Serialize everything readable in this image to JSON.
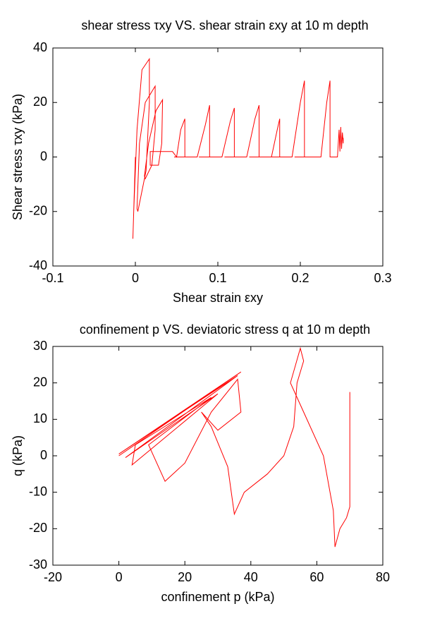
{
  "chart_data": [
    {
      "type": "line",
      "title": "shear stress τxy VS. shear strain εxy at 10 m depth",
      "xlabel": "Shear strain εxy",
      "ylabel": "Shear stress τxy (kPa)",
      "xlim": [
        -0.1,
        0.3
      ],
      "ylim": [
        -40,
        40
      ],
      "xticks": [
        -0.1,
        0,
        0.1,
        0.2,
        0.3
      ],
      "yticks": [
        -40,
        -20,
        0,
        20,
        40
      ],
      "series": [
        {
          "color": "#ff0000",
          "x": [
            0,
            -0.003,
            -0.002,
            0.002,
            0.008,
            0.017,
            0.017,
            0.013,
            0.003,
            0.002,
            0.005,
            0.012,
            0.024,
            0.024,
            0.02,
            0.012,
            0.011,
            0.016,
            0.025,
            0.033,
            0.032,
            0.028,
            0.018,
            0.018,
            0.045,
            0.05,
            0.055,
            0.06,
            0.06,
            0.047,
            0.075,
            0.085,
            0.09,
            0.09,
            0.077,
            0.105,
            0.115,
            0.12,
            0.12,
            0.108,
            0.135,
            0.145,
            0.15,
            0.15,
            0.138,
            0.165,
            0.172,
            0.175,
            0.175,
            0.163,
            0.19,
            0.2,
            0.205,
            0.205,
            0.193,
            0.225,
            0.232,
            0.236,
            0.236,
            0.245,
            0.247,
            0.248,
            0.249,
            0.25,
            0.251,
            0.252,
            0.252
          ],
          "values": [
            0,
            -30,
            -20,
            10,
            32,
            36,
            20,
            -5,
            -20,
            -19,
            5,
            20,
            26,
            10,
            -3,
            -8,
            -7,
            5,
            17,
            21,
            5,
            -3,
            -3,
            2,
            2,
            0,
            10,
            14,
            0,
            0,
            0,
            12,
            19,
            0,
            0,
            0,
            13,
            18,
            0,
            0,
            0,
            14,
            19,
            0,
            0,
            0,
            10,
            14,
            0,
            0,
            0,
            20,
            28,
            0,
            0,
            0,
            20,
            28,
            0,
            0,
            10,
            2,
            11,
            3,
            9,
            5,
            7
          ]
        }
      ]
    },
    {
      "type": "line",
      "title": "confinement p VS. deviatoric stress q at 10 m depth",
      "xlabel": "confinement p (kPa)",
      "ylabel": "q (kPa)",
      "xlim": [
        -20,
        80
      ],
      "ylim": [
        -30,
        30
      ],
      "xticks": [
        -20,
        0,
        20,
        40,
        60,
        80
      ],
      "yticks": [
        -30,
        -20,
        -10,
        0,
        10,
        20,
        30
      ],
      "series": [
        {
          "color": "#ff0000",
          "x": [
            0,
            37,
            0,
            36,
            2,
            30,
            4,
            5,
            28,
            9,
            14,
            20,
            28,
            36,
            37,
            30,
            25,
            28,
            33,
            35,
            38,
            45,
            50,
            53,
            54,
            56,
            55,
            52,
            56,
            62,
            65,
            65.5,
            67,
            69,
            70,
            70
          ],
          "values": [
            0,
            23,
            0.5,
            22,
            -0.5,
            17,
            -2.5,
            3,
            16,
            3,
            -7,
            -2,
            12,
            21,
            12,
            7,
            12,
            8,
            -3,
            -16,
            -10,
            -5,
            0,
            8,
            20,
            26,
            29.5,
            20,
            12,
            0,
            -15,
            -25,
            -20,
            -17,
            -14,
            17.5
          ]
        }
      ]
    }
  ]
}
